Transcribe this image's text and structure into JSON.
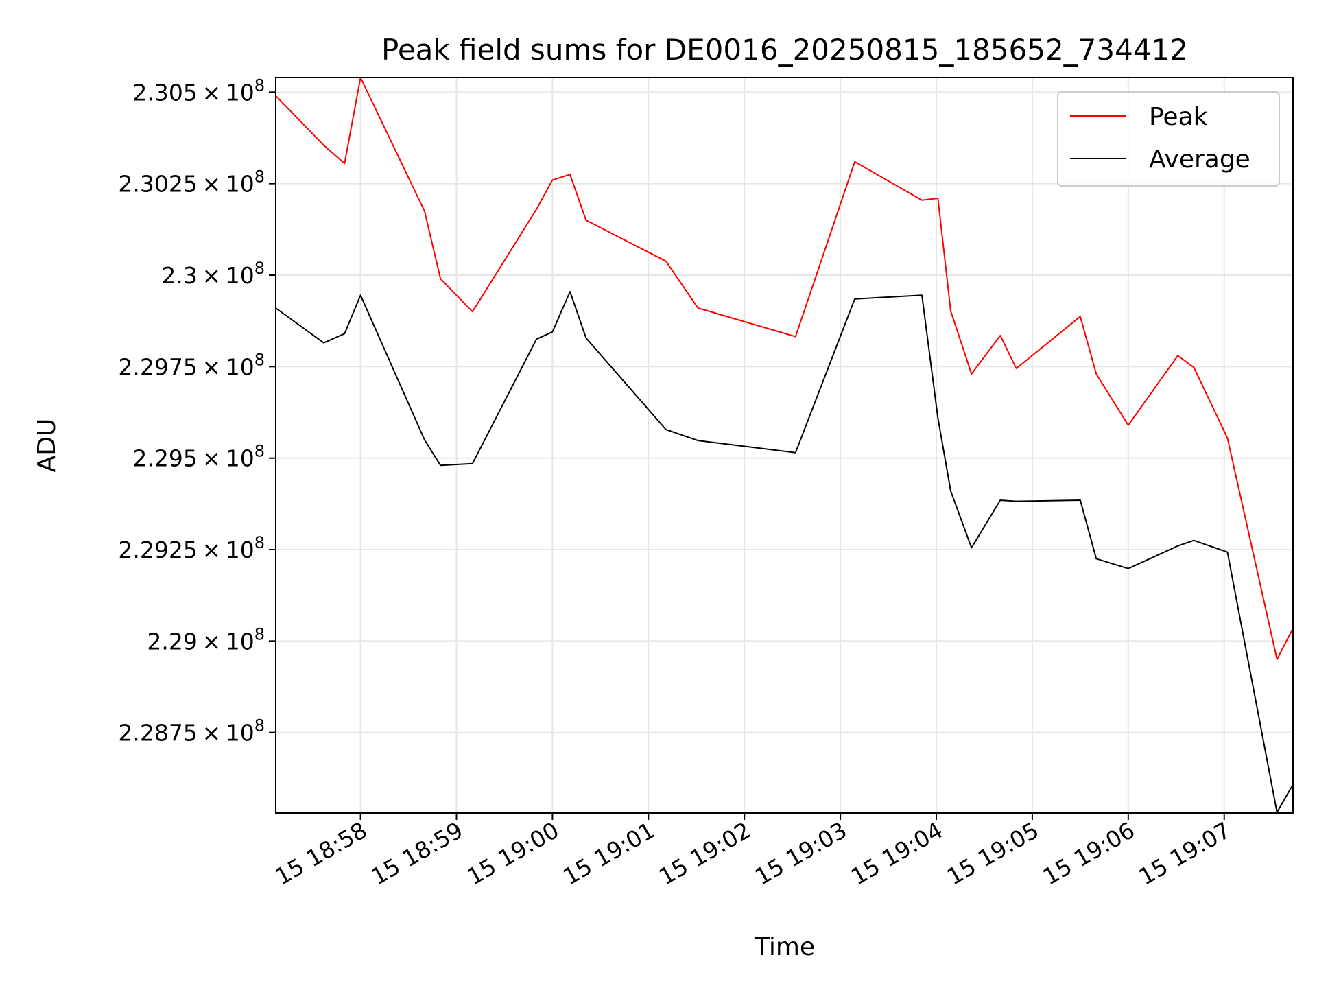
{
  "chart_data": {
    "type": "line",
    "title": "Peak field sums for DE0016_20250815_185652_734412",
    "xlabel": "Time",
    "ylabel": "ADU",
    "x_tick_labels": [
      "15 18:58",
      "15 18:59",
      "15 19:00",
      "15 19:01",
      "15 19:02",
      "15 19:03",
      "15 19:04",
      "15 19:05",
      "15 19:06",
      "15 19:07"
    ],
    "x_tick_times": [
      "18:58:00",
      "18:59:00",
      "19:00:00",
      "19:01:00",
      "19:02:00",
      "19:03:00",
      "19:04:00",
      "19:05:00",
      "19:06:00",
      "19:07:00"
    ],
    "y_tick_values": [
      228750000,
      229000000,
      229250000,
      229500000,
      229750000,
      230000000,
      230250000,
      230500000
    ],
    "y_tick_mantissas": [
      "2.2875",
      "2.29",
      "2.2925",
      "2.295",
      "2.2975",
      "2.3",
      "2.3025",
      "2.305"
    ],
    "y_tick_exponent_base": "10",
    "y_tick_exponent": "8",
    "xlim": [
      "18:57:07",
      "19:07:43"
    ],
    "ylim": [
      228530000,
      230540000
    ],
    "grid": true,
    "legend_position": "top-right",
    "x": [
      "18:57:07",
      "18:57:37",
      "18:57:50",
      "18:58:00",
      "18:58:40",
      "18:58:50",
      "18:59:10",
      "18:59:50",
      "19:00:00",
      "19:00:11",
      "19:00:21",
      "19:01:11",
      "19:01:31",
      "19:02:32",
      "19:03:09",
      "19:03:51",
      "19:04:01",
      "19:04:09",
      "19:04:22",
      "19:04:40",
      "19:04:50",
      "19:05:30",
      "19:05:40",
      "19:06:00",
      "19:06:31",
      "19:06:41",
      "19:07:02",
      "19:07:33",
      "19:07:43"
    ],
    "series": [
      {
        "name": "Peak",
        "color": "#ff0000",
        "values": [
          230490000,
          230355000,
          230305000,
          230540000,
          230175000,
          229990000,
          229900000,
          230180000,
          230260000,
          230275000,
          230150000,
          230038000,
          229910000,
          229832000,
          230310000,
          230205000,
          230210000,
          229902000,
          229730000,
          229835000,
          229745000,
          229887000,
          229730000,
          229590000,
          229780000,
          229748000,
          229555000,
          228950000,
          229035000
        ]
      },
      {
        "name": "Average",
        "color": "#000000",
        "values": [
          229910000,
          229815000,
          229840000,
          229945000,
          229550000,
          229480000,
          229485000,
          229825000,
          229845000,
          229955000,
          229828000,
          229578000,
          229548000,
          229515000,
          229935000,
          229945000,
          229610000,
          229410000,
          229255000,
          229385000,
          229382000,
          229385000,
          229225000,
          229198000,
          229260000,
          229275000,
          229243000,
          228532000,
          228608000
        ]
      }
    ]
  }
}
